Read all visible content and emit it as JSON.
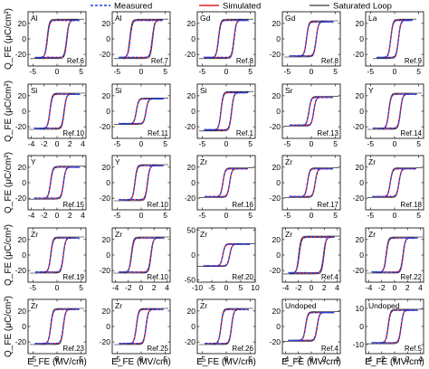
{
  "legend": {
    "placement": "top-center",
    "entries": [
      {
        "name": "Measured",
        "color": "#1f3fd8",
        "style": "dashed"
      },
      {
        "name": "Simulated",
        "color": "#e8202a",
        "style": "solid"
      },
      {
        "name": "Saturated Loop",
        "color": "#000000",
        "style": "solid-thin"
      }
    ]
  },
  "axes": {
    "ylabel": "Q_FE (μC/cm²)",
    "xlabel": "E_FE (MV/cm)"
  },
  "chart_data": [
    {
      "type": "line",
      "row": 0,
      "col": 0,
      "element": "Al",
      "ref": "Ref.6",
      "xlim": [
        -6,
        6
      ],
      "ylim": [
        -35,
        35
      ],
      "xticks": [
        -5,
        0,
        5
      ],
      "yticks": [
        -20,
        0,
        20
      ],
      "ec": 2.0,
      "sat": 24,
      "emax": 4.5,
      "grid": false
    },
    {
      "type": "line",
      "row": 0,
      "col": 1,
      "element": "Al",
      "ref": "Ref.7",
      "xlim": [
        -6,
        6
      ],
      "ylim": [
        -35,
        35
      ],
      "xticks": [
        -5,
        0,
        5
      ],
      "yticks": [
        -20,
        0,
        20
      ],
      "ec": 2.3,
      "sat": 24,
      "emax": 4.5,
      "grid": false
    },
    {
      "type": "line",
      "row": 0,
      "col": 2,
      "element": "Gd",
      "ref": "Ref.8",
      "xlim": [
        -6,
        6
      ],
      "ylim": [
        -35,
        35
      ],
      "xticks": [
        -5,
        0,
        5
      ],
      "yticks": [
        -20,
        0,
        20
      ],
      "ec": 1.6,
      "sat": 24,
      "emax": 4.5,
      "grid": false
    },
    {
      "type": "line",
      "row": 0,
      "col": 3,
      "element": "Gd",
      "ref": "Ref.8",
      "xlim": [
        -6,
        6
      ],
      "ylim": [
        -35,
        35
      ],
      "xticks": [
        -5,
        0,
        5
      ],
      "yticks": [
        -20,
        0,
        20
      ],
      "ec": 1.0,
      "sat": 22,
      "emax": 4.5,
      "grid": false
    },
    {
      "type": "line",
      "row": 0,
      "col": 4,
      "element": "La",
      "ref": "Ref.9",
      "xlim": [
        -6,
        6
      ],
      "ylim": [
        -35,
        35
      ],
      "xticks": [
        -5,
        0,
        5
      ],
      "yticks": [
        -20,
        0,
        20
      ],
      "ec": 0.8,
      "sat": 24,
      "emax": 3.6,
      "grid": false
    },
    {
      "type": "line",
      "row": 1,
      "col": 0,
      "element": "Si",
      "ref": "Ref.10",
      "xlim": [
        -4.5,
        4.5
      ],
      "ylim": [
        -35,
        35
      ],
      "xticks": [
        -4,
        -2,
        0,
        2,
        4
      ],
      "yticks": [
        -20,
        0,
        20
      ],
      "ec": 1.1,
      "sat": 22,
      "emax": 3.5,
      "grid": false
    },
    {
      "type": "line",
      "row": 1,
      "col": 1,
      "element": "Si",
      "ref": "Ref.11",
      "xlim": [
        -6,
        6
      ],
      "ylim": [
        -35,
        35
      ],
      "xticks": [
        -5,
        0,
        5
      ],
      "yticks": [
        -20,
        0,
        20
      ],
      "ec": 1.0,
      "sat": 16,
      "emax": 4.5,
      "grid": false
    },
    {
      "type": "line",
      "row": 1,
      "col": 2,
      "element": "Si",
      "ref": "Ref.1",
      "xlim": [
        -6,
        6
      ],
      "ylim": [
        -35,
        35
      ],
      "xticks": [
        -5,
        0,
        5
      ],
      "yticks": [
        -20,
        0,
        20
      ],
      "ec": 1.1,
      "sat": 24,
      "emax": 4.5,
      "grid": false
    },
    {
      "type": "line",
      "row": 1,
      "col": 3,
      "element": "Sr",
      "ref": "Ref.13",
      "xlim": [
        -6,
        6
      ],
      "ylim": [
        -35,
        35
      ],
      "xticks": [
        -5,
        0,
        5
      ],
      "yticks": [
        -20,
        0,
        20
      ],
      "ec": 0.5,
      "sat": 18,
      "emax": 4.5,
      "grid": false
    },
    {
      "type": "line",
      "row": 1,
      "col": 4,
      "element": "Y",
      "ref": "Ref.14",
      "xlim": [
        -6,
        6
      ],
      "ylim": [
        -35,
        35
      ],
      "xticks": [
        -5,
        0,
        5
      ],
      "yticks": [
        -20,
        0,
        20
      ],
      "ec": 1.2,
      "sat": 22,
      "emax": 4.5,
      "grid": false
    },
    {
      "type": "line",
      "row": 2,
      "col": 0,
      "element": "Y",
      "ref": "Ref.15",
      "xlim": [
        -4.5,
        4.5
      ],
      "ylim": [
        -35,
        35
      ],
      "xticks": [
        -4,
        -2,
        0,
        2,
        4
      ],
      "yticks": [
        -20,
        0,
        20
      ],
      "ec": 1.0,
      "sat": 20,
      "emax": 3.5,
      "grid": false
    },
    {
      "type": "line",
      "row": 2,
      "col": 1,
      "element": "Y",
      "ref": "Ref.10",
      "xlim": [
        -6,
        6
      ],
      "ylim": [
        -35,
        35
      ],
      "xticks": [
        -5,
        0,
        5
      ],
      "yticks": [
        -20,
        0,
        20
      ],
      "ec": 1.3,
      "sat": 22,
      "emax": 4.5,
      "grid": false
    },
    {
      "type": "line",
      "row": 2,
      "col": 2,
      "element": "Zr",
      "ref": "Ref.16",
      "xlim": [
        -6,
        6
      ],
      "ylim": [
        -35,
        35
      ],
      "xticks": [
        -5,
        0,
        5
      ],
      "yticks": [
        -20,
        0,
        20
      ],
      "ec": 0.7,
      "sat": 18,
      "emax": 4.5,
      "grid": false
    },
    {
      "type": "line",
      "row": 2,
      "col": 3,
      "element": "Zr",
      "ref": "Ref.17",
      "xlim": [
        -6,
        6
      ],
      "ylim": [
        -35,
        35
      ],
      "xticks": [
        -5,
        0,
        5
      ],
      "yticks": [
        -20,
        0,
        20
      ],
      "ec": 0.8,
      "sat": 18,
      "emax": 4.5,
      "grid": false
    },
    {
      "type": "line",
      "row": 2,
      "col": 4,
      "element": "Zr",
      "ref": "Ref.18",
      "xlim": [
        -6,
        6
      ],
      "ylim": [
        -35,
        35
      ],
      "xticks": [
        -5,
        0,
        5
      ],
      "yticks": [
        -20,
        0,
        20
      ],
      "ec": 0.9,
      "sat": 18,
      "emax": 4.5,
      "grid": false
    },
    {
      "type": "line",
      "row": 3,
      "col": 0,
      "element": "Zr",
      "ref": "Ref.19",
      "xlim": [
        -6,
        6
      ],
      "ylim": [
        -35,
        35
      ],
      "xticks": [
        -5,
        0,
        5
      ],
      "yticks": [
        -20,
        0,
        20
      ],
      "ec": 1.3,
      "sat": 22,
      "emax": 4.5,
      "grid": false
    },
    {
      "type": "line",
      "row": 3,
      "col": 1,
      "element": "Zr",
      "ref": "Ref.10",
      "xlim": [
        -4.5,
        4.5
      ],
      "ylim": [
        -35,
        35
      ],
      "xticks": [
        -4,
        -2,
        0,
        2,
        4
      ],
      "yticks": [
        -20,
        0,
        20
      ],
      "ec": 1.5,
      "sat": 22,
      "emax": 3.5,
      "grid": false
    },
    {
      "type": "line",
      "row": 3,
      "col": 2,
      "element": "Zr",
      "ref": "Ref.20",
      "xlim": [
        -10,
        10
      ],
      "ylim": [
        -55,
        55
      ],
      "xticks": [
        -10,
        -5,
        0,
        5,
        10
      ],
      "yticks": [
        -50,
        0,
        50
      ],
      "ec": 1.2,
      "sat": 22,
      "emax": 8,
      "grid": false
    },
    {
      "type": "line",
      "row": 3,
      "col": 3,
      "element": "Zr",
      "ref": "Ref.4",
      "xlim": [
        -4.5,
        4.5
      ],
      "ylim": [
        -35,
        35
      ],
      "xticks": [
        -4,
        -2,
        0,
        2,
        4
      ],
      "yticks": [
        -20,
        0,
        20
      ],
      "ec": 1.9,
      "sat": 23,
      "emax": 3.5,
      "grid": false
    },
    {
      "type": "line",
      "row": 3,
      "col": 4,
      "element": "Zr",
      "ref": "Ref.22",
      "xlim": [
        -4.5,
        4.5
      ],
      "ylim": [
        -35,
        35
      ],
      "xticks": [
        -4,
        -2,
        0,
        2,
        4
      ],
      "yticks": [
        -20,
        0,
        20
      ],
      "ec": 1.3,
      "sat": 22,
      "emax": 3.5,
      "grid": false
    },
    {
      "type": "line",
      "row": 4,
      "col": 0,
      "element": "Zr",
      "ref": "Ref.23",
      "xlim": [
        -6,
        6
      ],
      "ylim": [
        -35,
        35
      ],
      "xticks": [
        -5,
        0,
        5
      ],
      "yticks": [
        -20,
        0,
        20
      ],
      "ec": 1.3,
      "sat": 22,
      "emax": 4.5,
      "grid": false
    },
    {
      "type": "line",
      "row": 4,
      "col": 1,
      "element": "Zr",
      "ref": "Ref.25",
      "xlim": [
        -6,
        6
      ],
      "ylim": [
        -35,
        35
      ],
      "xticks": [
        -5,
        0,
        5
      ],
      "yticks": [
        -20,
        0,
        20
      ],
      "ec": 1.0,
      "sat": 22,
      "emax": 4.5,
      "grid": false
    },
    {
      "type": "line",
      "row": 4,
      "col": 2,
      "element": "Zr",
      "ref": "Ref.26",
      "xlim": [
        -6,
        6
      ],
      "ylim": [
        -35,
        35
      ],
      "xticks": [
        -5,
        0,
        5
      ],
      "yticks": [
        -20,
        0,
        20
      ],
      "ec": 1.1,
      "sat": 22,
      "emax": 4.5,
      "grid": false
    },
    {
      "type": "line",
      "row": 4,
      "col": 3,
      "element": "Undoped",
      "ref": "Ref.4",
      "xlim": [
        -4.5,
        4.5
      ],
      "ylim": [
        -35,
        35
      ],
      "xticks": [
        -4,
        -2,
        0,
        2,
        4
      ],
      "yticks": [
        -20,
        0,
        20
      ],
      "ec": 0.9,
      "sat": 18,
      "emax": 3.5,
      "grid": false
    },
    {
      "type": "line",
      "row": 4,
      "col": 4,
      "element": "Undoped",
      "ref": "Ref.5",
      "xlim": [
        -4.5,
        4.5
      ],
      "ylim": [
        -15,
        15
      ],
      "xticks": [
        -4,
        -2,
        0,
        2,
        4
      ],
      "yticks": [
        -10,
        0,
        10
      ],
      "ec": 1.0,
      "sat": 9,
      "emax": 3.5,
      "grid": false
    }
  ]
}
